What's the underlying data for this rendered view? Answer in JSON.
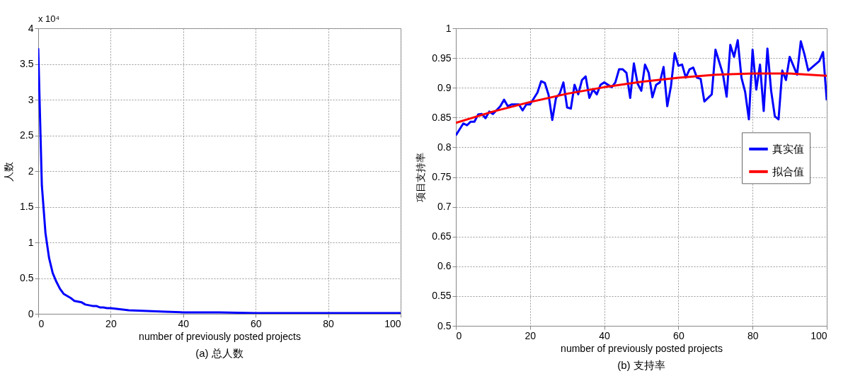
{
  "chart_data": [
    {
      "type": "line",
      "title": "(a)  总人数",
      "xlabel": "number of previously posted projects",
      "ylabel": "人数",
      "annotations": [
        "x 10⁴"
      ],
      "xlim": [
        0,
        100
      ],
      "xticks": [
        0,
        20,
        40,
        60,
        80,
        100
      ],
      "ylim": [
        0,
        4
      ],
      "yticks": [
        0,
        0.5,
        1,
        1.5,
        2,
        2.5,
        3,
        3.5,
        4
      ],
      "grid": true,
      "legend": false,
      "x": [
        0,
        1,
        2,
        3,
        4,
        5,
        6,
        7,
        8,
        9,
        10,
        11,
        12,
        13,
        14,
        15,
        16,
        17,
        18,
        19,
        20,
        25,
        30,
        35,
        40,
        50,
        60,
        70,
        80,
        90,
        100
      ],
      "series": [
        {
          "color": "#0000ff",
          "values": [
            3.72,
            1.8,
            1.13,
            0.78,
            0.57,
            0.45,
            0.35,
            0.28,
            0.25,
            0.22,
            0.18,
            0.17,
            0.16,
            0.13,
            0.12,
            0.11,
            0.11,
            0.09,
            0.09,
            0.08,
            0.08,
            0.05,
            0.04,
            0.03,
            0.02,
            0.02,
            0.01,
            0.01,
            0.01,
            0.01,
            0.01
          ]
        }
      ]
    },
    {
      "type": "line",
      "title": "(b)  支持率",
      "xlabel": "number of previously posted projects",
      "ylabel": "项目支持率",
      "xlim": [
        0,
        100
      ],
      "xticks": [
        0,
        20,
        40,
        60,
        80,
        100
      ],
      "ylim": [
        0.5,
        1
      ],
      "yticks": [
        0.5,
        0.55,
        0.6,
        0.65,
        0.7,
        0.75,
        0.8,
        0.85,
        0.9,
        0.95,
        1
      ],
      "grid": true,
      "legend": "right",
      "series": [
        {
          "name": "真实值",
          "color": "#0000ff",
          "x": [
            0,
            2,
            3,
            4,
            5,
            6,
            7,
            8,
            9,
            10,
            12,
            13,
            14,
            15,
            17,
            18,
            19,
            20,
            22,
            23,
            24,
            25,
            26,
            27,
            28,
            29,
            30,
            31,
            32,
            33,
            34,
            35,
            36,
            37,
            38,
            39,
            40,
            42,
            43,
            44,
            45,
            46,
            47,
            48,
            49,
            50,
            51,
            52,
            53,
            54,
            55,
            56,
            57,
            58,
            59,
            60,
            61,
            62,
            63,
            64,
            65,
            66,
            67,
            69,
            70,
            72,
            73,
            74,
            75,
            76,
            77,
            78,
            79,
            80,
            81,
            82,
            83,
            84,
            85,
            86,
            87,
            88,
            89,
            90,
            92,
            93,
            94,
            95,
            98,
            99,
            100
          ],
          "values": [
            0.82,
            0.84,
            0.837,
            0.843,
            0.843,
            0.855,
            0.856,
            0.849,
            0.86,
            0.856,
            0.869,
            0.88,
            0.869,
            0.872,
            0.872,
            0.862,
            0.872,
            0.872,
            0.892,
            0.911,
            0.908,
            0.888,
            0.846,
            0.883,
            0.89,
            0.909,
            0.867,
            0.865,
            0.905,
            0.889,
            0.913,
            0.919,
            0.883,
            0.897,
            0.889,
            0.905,
            0.909,
            0.901,
            0.909,
            0.931,
            0.931,
            0.925,
            0.883,
            0.941,
            0.907,
            0.895,
            0.939,
            0.925,
            0.884,
            0.905,
            0.909,
            0.935,
            0.869,
            0.903,
            0.958,
            0.937,
            0.939,
            0.917,
            0.931,
            0.934,
            0.917,
            0.915,
            0.877,
            0.889,
            0.964,
            0.923,
            0.885,
            0.972,
            0.952,
            0.98,
            0.917,
            0.893,
            0.847,
            0.964,
            0.897,
            0.939,
            0.861,
            0.966,
            0.895,
            0.852,
            0.847,
            0.929,
            0.913,
            0.952,
            0.922,
            0.978,
            0.956,
            0.929,
            0.945,
            0.96,
            0.879
          ]
        },
        {
          "name": "拟合值",
          "color": "#ff0000",
          "x": [
            0,
            10,
            20,
            30,
            40,
            50,
            60,
            70,
            80,
            90,
            100
          ],
          "values": [
            0.841,
            0.86,
            0.876,
            0.89,
            0.901,
            0.91,
            0.917,
            0.922,
            0.924,
            0.924,
            0.92
          ]
        }
      ]
    }
  ]
}
